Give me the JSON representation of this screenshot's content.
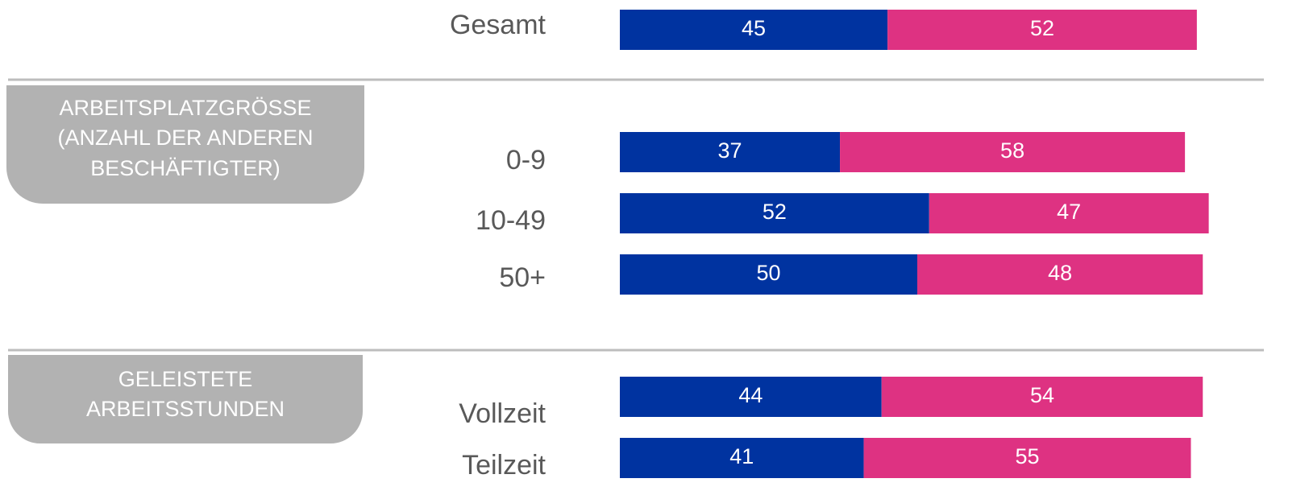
{
  "chart_data": {
    "type": "stacked-bar",
    "categories": [
      "Gesamt",
      "0-9",
      "10-49",
      "50+",
      "Vollzeit",
      "Teilzeit"
    ],
    "series": [
      {
        "color": "#0033a0",
        "values": [
          45,
          37,
          52,
          50,
          44,
          41
        ]
      },
      {
        "color": "#de3282",
        "values": [
          52,
          58,
          47,
          48,
          54,
          55
        ]
      }
    ],
    "xlim": [
      0,
      100
    ],
    "groups": [
      {
        "label": [
          "ARBEITSPLATZGRÖSSE",
          "(ANZAHL DER ANDEREN",
          "BESCHÄFTIGTER)"
        ]
      },
      {
        "label": [
          "GELEISTETE",
          "ARBEITSSTUNDEN"
        ]
      }
    ]
  }
}
